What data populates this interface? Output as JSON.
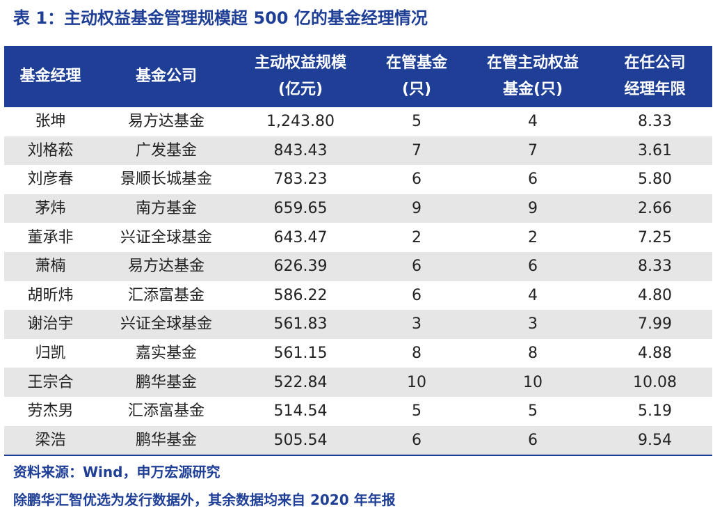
{
  "title": "表 1：主动权益基金管理规模超 500 亿的基金经理情况",
  "table": {
    "headers": [
      {
        "line1": "基金经理",
        "line2": ""
      },
      {
        "line1": "基金公司",
        "line2": ""
      },
      {
        "line1": "主动权益规模",
        "line2": "(亿元)"
      },
      {
        "line1": "在管基金",
        "line2": "(只)"
      },
      {
        "line1": "在管主动权益",
        "line2": "基金(只)"
      },
      {
        "line1": "在任公司",
        "line2": "经理年限"
      }
    ],
    "rows": [
      [
        "张坤",
        "易方达基金",
        "1,243.80",
        "5",
        "4",
        "8.33"
      ],
      [
        "刘格菘",
        "广发基金",
        "843.43",
        "7",
        "7",
        "3.61"
      ],
      [
        "刘彦春",
        "景顺长城基金",
        "783.23",
        "6",
        "6",
        "5.80"
      ],
      [
        "茅炜",
        "南方基金",
        "659.65",
        "9",
        "9",
        "2.66"
      ],
      [
        "董承非",
        "兴证全球基金",
        "643.47",
        "2",
        "2",
        "7.25"
      ],
      [
        "萧楠",
        "易方达基金",
        "626.39",
        "6",
        "6",
        "8.33"
      ],
      [
        "胡昕炜",
        "汇添富基金",
        "586.22",
        "6",
        "4",
        "4.80"
      ],
      [
        "谢治宇",
        "兴证全球基金",
        "561.83",
        "3",
        "3",
        "7.99"
      ],
      [
        "归凯",
        "嘉实基金",
        "561.15",
        "8",
        "8",
        "4.88"
      ],
      [
        "王宗合",
        "鹏华基金",
        "522.84",
        "10",
        "10",
        "10.08"
      ],
      [
        "劳杰男",
        "汇添富基金",
        "514.54",
        "5",
        "5",
        "5.19"
      ],
      [
        "梁浩",
        "鹏华基金",
        "505.54",
        "6",
        "6",
        "9.54"
      ]
    ]
  },
  "notes": {
    "source": "资料来源：Wind，申万宏源研究",
    "remark": "除鹏华汇智优选为发行数据外，其余数据均来自 2020 年年报"
  },
  "colors": {
    "accent": "#1f3f97",
    "stripe": "#e6e6e6"
  }
}
